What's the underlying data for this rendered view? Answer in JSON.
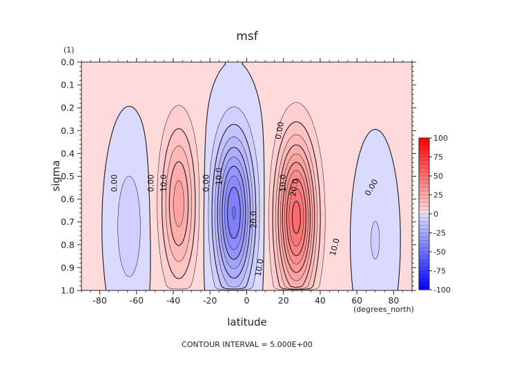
{
  "chart_data": {
    "type": "contour",
    "title": "msf",
    "xlabel": "latitude",
    "xunits": "(degrees_north)",
    "ylabel": "sigma",
    "yunits": "(1)",
    "xlim": [
      -90,
      90
    ],
    "ylim": [
      0.0,
      1.0
    ],
    "xticks": [
      -80,
      -60,
      -40,
      -20,
      0,
      20,
      40,
      60,
      80
    ],
    "xtick_labels": [
      "-80",
      "-60",
      "-40",
      "-20",
      "0",
      "20",
      "40",
      "60",
      "80"
    ],
    "yticks": [
      0.0,
      0.1,
      0.2,
      0.3,
      0.4,
      0.5,
      0.6,
      0.7,
      0.8,
      0.9,
      1.0
    ],
    "ytick_labels": [
      "0.0",
      "0.1",
      "0.2",
      "0.3",
      "0.4",
      "0.5",
      "0.6",
      "0.7",
      "0.8",
      "0.9",
      "1.0"
    ],
    "footer": "CONTOUR INTERVAL = 5.000E+00",
    "colorbar": {
      "ticks": [
        100,
        75,
        50,
        25,
        0,
        -25,
        -50,
        -75,
        -100
      ],
      "labels": [
        "100",
        "75",
        "50",
        "25",
        "0",
        "-25",
        "-50",
        "-75",
        "-100"
      ],
      "min": -100,
      "max": 100,
      "step": 5
    },
    "cells": [
      {
        "name": "southern-polar-negative-cell",
        "lat": -64,
        "sigma": 0.72,
        "amp": -9
      },
      {
        "name": "southern-midlatitude-positive-cell",
        "lat": -37,
        "sigma": 0.62,
        "amp": 27
      },
      {
        "name": "southern-hadley-negative-cell",
        "lat": -7,
        "sigma": 0.66,
        "amp": -46
      },
      {
        "name": "northern-hadley-positive-cell",
        "lat": 27,
        "sigma": 0.68,
        "amp": 52
      },
      {
        "name": "northern-polar-negative-cell",
        "lat": 70,
        "sigma": 0.78,
        "amp": -6
      }
    ],
    "contour_labels": [
      {
        "text": "0.00",
        "lat": -72,
        "sigma": 0.53,
        "rotate": -90
      },
      {
        "text": "0.00",
        "lat": -52,
        "sigma": 0.53,
        "rotate": -90
      },
      {
        "text": "10.0",
        "lat": -45,
        "sigma": 0.53,
        "rotate": -90
      },
      {
        "text": "0.00",
        "lat": -22,
        "sigma": 0.53,
        "rotate": -90
      },
      {
        "text": "10.0",
        "lat": -15,
        "sigma": 0.5,
        "rotate": -90
      },
      {
        "text": "20.0",
        "lat": 4,
        "sigma": 0.69,
        "rotate": -90
      },
      {
        "text": "10.0",
        "lat": 7,
        "sigma": 0.9,
        "rotate": -80
      },
      {
        "text": "0.00",
        "lat": 18,
        "sigma": 0.3,
        "rotate": -80
      },
      {
        "text": "10.0",
        "lat": 20,
        "sigma": 0.53,
        "rotate": -90
      },
      {
        "text": "20.0",
        "lat": 26,
        "sigma": 0.55,
        "rotate": -80
      },
      {
        "text": "10.0",
        "lat": 48,
        "sigma": 0.81,
        "rotate": -75
      },
      {
        "text": "0.00",
        "lat": 68,
        "sigma": 0.55,
        "rotate": -60
      }
    ]
  }
}
